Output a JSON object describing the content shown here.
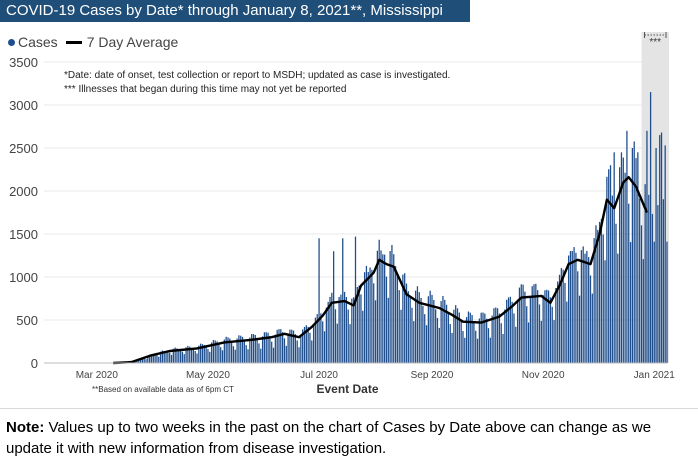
{
  "title": "COVID-19 Cases by Date* through January 8, 2021**, Mississippi",
  "note": {
    "label": "Note:",
    "text": " Values up to two weeks in the past on the chart of Cases by Date above can change as we update it with new information from disease investigation."
  },
  "chart_data": {
    "type": "bar",
    "xlabel": "Event Date",
    "ylabel": "",
    "ylim": [
      0,
      3500
    ],
    "yticks": [
      0,
      500,
      1000,
      1500,
      2000,
      2500,
      3000,
      3500
    ],
    "xticks": [
      {
        "label": "Mar 2020",
        "date": "2020-03-01"
      },
      {
        "label": "May 2020",
        "date": "2020-05-01"
      },
      {
        "label": "Jul 2020",
        "date": "2020-07-01"
      },
      {
        "label": "Sep 2020",
        "date": "2020-09-01"
      },
      {
        "label": "Nov 2020",
        "date": "2020-11-01"
      },
      {
        "label": "Jan 2021",
        "date": "2021-01-01"
      }
    ],
    "x_start": "2020-02-01",
    "x_end": "2021-01-08",
    "grid": true,
    "legend": {
      "position": "top-left",
      "items": [
        {
          "name": "Cases",
          "marker": "dot",
          "color": "#1f4e8c"
        },
        {
          "name": "7 Day Average",
          "marker": "line",
          "color": "#000000"
        }
      ]
    },
    "annotations": [
      "*Date: date of onset, test collection or report to MSDH; updated as case is investigated.",
      "*** Illnesses that began during this time may not yet be reported"
    ],
    "shaded_region": {
      "start": "2020-12-25",
      "end": "2021-01-08",
      "label": "***"
    },
    "footnote": "**Based on available data as of 6pm CT",
    "avg_keypoints": [
      [
        "2020-03-10",
        0
      ],
      [
        "2020-03-20",
        10
      ],
      [
        "2020-03-31",
        90
      ],
      [
        "2020-04-10",
        140
      ],
      [
        "2020-04-25",
        170
      ],
      [
        "2020-05-10",
        240
      ],
      [
        "2020-05-25",
        270
      ],
      [
        "2020-06-05",
        300
      ],
      [
        "2020-06-12",
        340
      ],
      [
        "2020-06-20",
        300
      ],
      [
        "2020-06-27",
        420
      ],
      [
        "2020-07-03",
        550
      ],
      [
        "2020-07-08",
        700
      ],
      [
        "2020-07-15",
        720
      ],
      [
        "2020-07-20",
        670
      ],
      [
        "2020-07-24",
        900
      ],
      [
        "2020-07-31",
        1050
      ],
      [
        "2020-08-03",
        1200
      ],
      [
        "2020-08-07",
        1150
      ],
      [
        "2020-08-11",
        1120
      ],
      [
        "2020-08-18",
        800
      ],
      [
        "2020-08-25",
        700
      ],
      [
        "2020-09-05",
        640
      ],
      [
        "2020-09-12",
        560
      ],
      [
        "2020-09-18",
        480
      ],
      [
        "2020-09-28",
        470
      ],
      [
        "2020-10-08",
        540
      ],
      [
        "2020-10-15",
        660
      ],
      [
        "2020-10-20",
        760
      ],
      [
        "2020-10-31",
        780
      ],
      [
        "2020-11-05",
        700
      ],
      [
        "2020-11-10",
        900
      ],
      [
        "2020-11-15",
        1150
      ],
      [
        "2020-11-20",
        1200
      ],
      [
        "2020-11-27",
        1150
      ],
      [
        "2020-12-02",
        1500
      ],
      [
        "2020-12-06",
        1900
      ],
      [
        "2020-12-10",
        1800
      ],
      [
        "2020-12-15",
        2100
      ],
      [
        "2020-12-18",
        2160
      ],
      [
        "2020-12-22",
        2050
      ],
      [
        "2020-12-26",
        1850
      ],
      [
        "2020-12-28",
        1750
      ]
    ],
    "case_spikes": [
      [
        "2020-07-01",
        1450
      ],
      [
        "2020-07-09",
        1300
      ],
      [
        "2020-07-14",
        1450
      ],
      [
        "2020-07-21",
        1470
      ],
      [
        "2020-08-06",
        1260
      ],
      [
        "2020-12-08",
        2300
      ],
      [
        "2020-12-10",
        2450
      ],
      [
        "2020-12-14",
        2450
      ],
      [
        "2020-12-17",
        2700
      ],
      [
        "2020-12-20",
        2500
      ],
      [
        "2020-12-23",
        2450
      ],
      [
        "2020-12-28",
        2700
      ],
      [
        "2020-12-30",
        3150
      ],
      [
        "2021-01-02",
        2500
      ],
      [
        "2021-01-04",
        2650
      ],
      [
        "2021-01-05",
        2680
      ],
      [
        "2021-01-07",
        2530
      ]
    ]
  }
}
